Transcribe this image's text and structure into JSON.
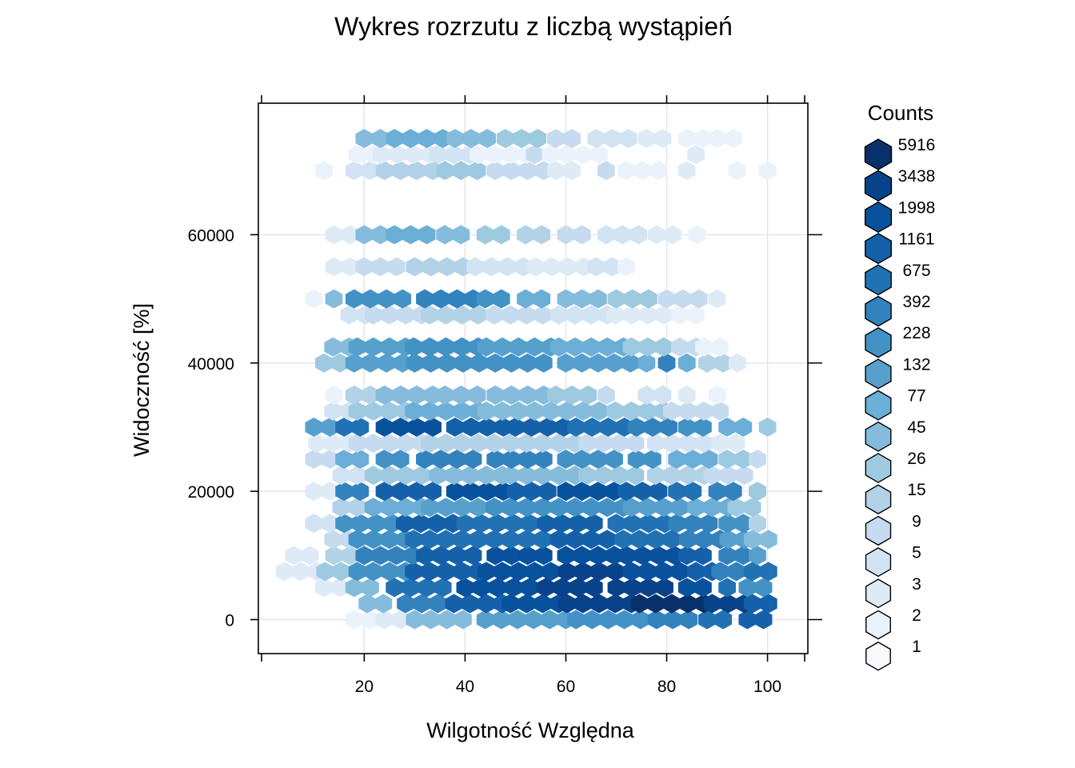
{
  "chart_data": {
    "type": "hexbin",
    "title": "Wykres rozrzutu z liczbą wystąpień",
    "xlabel": "Wilgotność Względna",
    "ylabel": "Widoczność [%]",
    "xlim": [
      -1,
      108
    ],
    "ylim": [
      -5300,
      80500
    ],
    "x_ticks": [
      20,
      40,
      60,
      80,
      100
    ],
    "y_ticks": [
      0,
      20000,
      40000,
      60000
    ],
    "x_tick_labels": [
      "20",
      "40",
      "60",
      "80",
      "100"
    ],
    "y_tick_labels": [
      "0",
      "20000",
      "40000",
      "60000"
    ],
    "grid": true,
    "legend": {
      "title": "Counts",
      "placement": "right",
      "levels": [
        "5916",
        "3438",
        "1998",
        "1161",
        "675",
        "392",
        "228",
        "132",
        "77",
        "45",
        "26",
        "15",
        "9",
        "5",
        "3",
        "2",
        "1"
      ]
    },
    "colors": [
      "#08306b",
      "#08428a",
      "#08519c",
      "#1561a9",
      "#2171b5",
      "#3282be",
      "#4292c6",
      "#57a0ce",
      "#6baed6",
      "#85bcdc",
      "#9ecae1",
      "#b2d2e8",
      "#c6dbef",
      "#d2e3f3",
      "#deebf7",
      "#eaf3fb",
      "#f7fbff"
    ],
    "row_spacing_y": 2500,
    "hex_width_x": 3.2,
    "bin_rows": [
      {
        "y": 0,
        "offset": 0,
        "segments": [
          [
            18,
            22,
            "2"
          ],
          [
            24,
            28,
            "3"
          ],
          [
            30,
            42,
            "45"
          ],
          [
            44,
            60,
            "132"
          ],
          [
            62,
            76,
            "228"
          ],
          [
            78,
            86,
            "392"
          ],
          [
            88,
            94,
            "675"
          ],
          [
            96,
            100,
            "1161"
          ]
        ]
      },
      {
        "y": 2500,
        "offset": 1,
        "segments": [
          [
            20.6,
            26.6,
            "45"
          ],
          [
            28.2,
            36.2,
            "392"
          ],
          [
            37.8,
            47.4,
            "1161"
          ],
          [
            49,
            58.6,
            "1998"
          ],
          [
            60.2,
            73,
            "3438"
          ],
          [
            74.6,
            87.4,
            "5916"
          ],
          [
            89,
            95.4,
            "3438"
          ],
          [
            97,
            100.2,
            "1161"
          ]
        ]
      },
      {
        "y": 5000,
        "offset": 0,
        "segments": [
          [
            12,
            16,
            "3"
          ],
          [
            18,
            24,
            "45"
          ],
          [
            26,
            38,
            "675"
          ],
          [
            40,
            54,
            "1998"
          ],
          [
            56,
            68,
            "3438"
          ],
          [
            70,
            82,
            "3438"
          ],
          [
            84,
            90,
            "1998"
          ],
          [
            92,
            94,
            "675"
          ],
          [
            96,
            100,
            "228"
          ]
        ]
      },
      {
        "y": 7500,
        "offset": 1,
        "segments": [
          [
            4.2,
            10.6,
            "3"
          ],
          [
            12.2,
            17,
            "26"
          ],
          [
            18.6,
            28.2,
            "228"
          ],
          [
            29.8,
            42.6,
            "1161"
          ],
          [
            44.2,
            58.6,
            "1998"
          ],
          [
            60.2,
            71.4,
            "3438"
          ],
          [
            73,
            84.2,
            "1998"
          ],
          [
            85.8,
            89,
            "1161"
          ],
          [
            90.6,
            95.4,
            "392"
          ],
          [
            97,
            100.2,
            "675"
          ]
        ]
      },
      {
        "y": 10000,
        "offset": 0,
        "segments": [
          [
            6,
            12,
            "3"
          ],
          [
            14,
            18,
            "15"
          ],
          [
            20,
            30,
            "392"
          ],
          [
            32,
            44,
            "1161"
          ],
          [
            46,
            58,
            "1998"
          ],
          [
            60,
            70,
            "1998"
          ],
          [
            72,
            82,
            "1998"
          ],
          [
            84,
            90,
            "1161"
          ],
          [
            92,
            96,
            "392"
          ],
          [
            98,
            100,
            "132"
          ]
        ]
      },
      {
        "y": 12500,
        "offset": 1,
        "segments": [
          [
            13.8,
            17,
            "9"
          ],
          [
            18.6,
            28.2,
            "228"
          ],
          [
            29.8,
            41,
            "675"
          ],
          [
            42.6,
            57,
            "675"
          ],
          [
            58.6,
            70,
            "1161"
          ],
          [
            71.4,
            82.6,
            "675"
          ],
          [
            84.2,
            90.6,
            "392"
          ],
          [
            92.2,
            95.4,
            "132"
          ],
          [
            97,
            100.2,
            "45"
          ]
        ]
      },
      {
        "y": 15000,
        "offset": 0,
        "segments": [
          [
            10,
            14,
            "5"
          ],
          [
            16,
            26,
            "228"
          ],
          [
            28,
            38,
            "1161"
          ],
          [
            40,
            54,
            "675"
          ],
          [
            56,
            68,
            "1161"
          ],
          [
            70,
            80,
            "675"
          ],
          [
            82,
            90,
            "392"
          ],
          [
            92,
            96,
            "228"
          ],
          [
            98,
            100,
            "15"
          ]
        ]
      },
      {
        "y": 17500,
        "offset": 1,
        "segments": [
          [
            15.4,
            20.2,
            "15"
          ],
          [
            21.8,
            31.4,
            "77"
          ],
          [
            33,
            44.2,
            "132"
          ],
          [
            45.8,
            57,
            "228"
          ],
          [
            58.6,
            71.4,
            "228"
          ],
          [
            73,
            84.2,
            "132"
          ],
          [
            85.8,
            92.2,
            "77"
          ],
          [
            93.8,
            97,
            "26"
          ]
        ]
      },
      {
        "y": 20000,
        "offset": 0,
        "segments": [
          [
            10,
            14,
            "3"
          ],
          [
            16,
            22,
            "392"
          ],
          [
            24,
            36,
            "1161"
          ],
          [
            38,
            48,
            "1998"
          ],
          [
            50,
            58,
            "1161"
          ],
          [
            60,
            70,
            "1998"
          ],
          [
            72,
            80,
            "1161"
          ],
          [
            82,
            88,
            "675"
          ],
          [
            90,
            96,
            "392"
          ],
          [
            98,
            100,
            "26"
          ]
        ]
      },
      {
        "y": 22500,
        "offset": 1,
        "segments": [
          [
            15.4,
            20.2,
            "5"
          ],
          [
            21.8,
            33,
            "26"
          ],
          [
            34.6,
            47.4,
            "45"
          ],
          [
            49,
            62.6,
            "45"
          ],
          [
            64.2,
            76.2,
            "26"
          ],
          [
            77.8,
            87.4,
            "15"
          ],
          [
            89,
            95.4,
            "9"
          ]
        ]
      },
      {
        "y": 25000,
        "offset": 0,
        "segments": [
          [
            10,
            14,
            "9"
          ],
          [
            16,
            22,
            "77"
          ],
          [
            24,
            30,
            "228"
          ],
          [
            32,
            44,
            "392"
          ],
          [
            46,
            58,
            "392"
          ],
          [
            60,
            72,
            "228"
          ],
          [
            74,
            80,
            "228"
          ],
          [
            82,
            90,
            "77"
          ],
          [
            92,
            96,
            "26"
          ],
          [
            98,
            100,
            "9"
          ]
        ]
      },
      {
        "y": 27500,
        "offset": 1,
        "segments": [
          [
            10.6,
            17,
            "3"
          ],
          [
            18.6,
            31.4,
            "9"
          ],
          [
            33,
            47.4,
            "15"
          ],
          [
            49,
            62.6,
            "15"
          ],
          [
            64.2,
            76.2,
            "9"
          ],
          [
            77.8,
            89,
            "5"
          ],
          [
            90.6,
            93.8,
            "3"
          ]
        ]
      },
      {
        "y": 30000,
        "offset": 0,
        "segments": [
          [
            10,
            14,
            "132"
          ],
          [
            16,
            22,
            "675"
          ],
          [
            24,
            36,
            "1998"
          ],
          [
            38,
            48,
            "1161"
          ],
          [
            50,
            60,
            "1161"
          ],
          [
            62,
            72,
            "675"
          ],
          [
            74,
            82,
            "392"
          ],
          [
            84,
            90,
            "228"
          ],
          [
            92,
            98,
            "77"
          ],
          [
            100,
            100,
            "26"
          ]
        ]
      },
      {
        "y": 32500,
        "offset": 1,
        "segments": [
          [
            13.8,
            17,
            "5"
          ],
          [
            18.6,
            28.2,
            "26"
          ],
          [
            29.8,
            42.6,
            "77"
          ],
          [
            44.2,
            55.4,
            "45"
          ],
          [
            57,
            68.2,
            "45"
          ],
          [
            69.8,
            79.4,
            "26"
          ],
          [
            81,
            90.6,
            "9"
          ]
        ]
      },
      {
        "y": 35000,
        "offset": 0,
        "segments": [
          [
            14,
            16,
            "2"
          ],
          [
            18,
            22,
            "15"
          ],
          [
            24,
            34,
            "45"
          ],
          [
            36,
            44,
            "45"
          ],
          [
            46,
            56,
            "45"
          ],
          [
            58,
            66,
            "26"
          ],
          [
            68,
            70,
            "9"
          ],
          [
            76,
            80,
            "5"
          ],
          [
            84,
            86,
            "3"
          ],
          [
            90,
            92,
            "2"
          ]
        ]
      },
      {
        "y": 40000,
        "offset": 0,
        "segments": [
          [
            12,
            16,
            "26"
          ],
          [
            18,
            28,
            "132"
          ],
          [
            30,
            44,
            "228"
          ],
          [
            46,
            58,
            "228"
          ],
          [
            60,
            74,
            "132"
          ],
          [
            76,
            78,
            "77"
          ],
          [
            80,
            82,
            "392"
          ],
          [
            84,
            86,
            "77"
          ],
          [
            88,
            92,
            "15"
          ],
          [
            94,
            96,
            "3"
          ]
        ]
      },
      {
        "y": 42500,
        "offset": 1,
        "segments": [
          [
            13.8,
            17,
            "45"
          ],
          [
            18.6,
            28.2,
            "132"
          ],
          [
            29.8,
            42.6,
            "228"
          ],
          [
            44.2,
            57,
            "132"
          ],
          [
            58.6,
            71.4,
            "77"
          ],
          [
            73,
            81,
            "26"
          ],
          [
            82.6,
            85.8,
            "9"
          ],
          [
            87.4,
            92.2,
            "2"
          ]
        ]
      },
      {
        "y": 47500,
        "offset": 1,
        "segments": [
          [
            17,
            20.2,
            "5"
          ],
          [
            21.8,
            31.4,
            "9"
          ],
          [
            33,
            44.2,
            "15"
          ],
          [
            45.8,
            57,
            "9"
          ],
          [
            58.6,
            68.2,
            "5"
          ],
          [
            69.8,
            81,
            "3"
          ],
          [
            82.6,
            85.8,
            "2"
          ]
        ]
      },
      {
        "y": 50000,
        "offset": 0,
        "segments": [
          [
            10,
            12,
            "2"
          ],
          [
            14,
            16,
            "45"
          ],
          [
            18,
            30,
            "228"
          ],
          [
            32,
            42,
            "392"
          ],
          [
            44,
            50,
            "228"
          ],
          [
            52,
            58,
            "77"
          ],
          [
            60,
            68,
            "45"
          ],
          [
            70,
            78,
            "26"
          ],
          [
            80,
            88,
            "9"
          ],
          [
            90,
            92,
            "3"
          ]
        ]
      },
      {
        "y": 55000,
        "offset": 0,
        "segments": [
          [
            14,
            18,
            "3"
          ],
          [
            20,
            28,
            "9"
          ],
          [
            30,
            40,
            "15"
          ],
          [
            42,
            52,
            "5"
          ],
          [
            54,
            64,
            "3"
          ],
          [
            66,
            70,
            "5"
          ],
          [
            72,
            74,
            "2"
          ]
        ]
      },
      {
        "y": 60000,
        "offset": 0,
        "segments": [
          [
            14,
            18,
            "3"
          ],
          [
            20,
            24,
            "45"
          ],
          [
            26,
            34,
            "77"
          ],
          [
            36,
            42,
            "45"
          ],
          [
            44,
            50,
            "26"
          ],
          [
            52,
            58,
            "15"
          ],
          [
            60,
            66,
            "9"
          ],
          [
            68,
            76,
            "5"
          ],
          [
            78,
            84,
            "3"
          ],
          [
            86,
            86,
            "2"
          ]
        ]
      },
      {
        "y": 70000,
        "offset": 0,
        "segments": [
          [
            12,
            12,
            "2"
          ],
          [
            18,
            22,
            "5"
          ],
          [
            24,
            34,
            "15"
          ],
          [
            36,
            44,
            "26"
          ],
          [
            46,
            56,
            "9"
          ],
          [
            58,
            64,
            "3"
          ],
          [
            68,
            68,
            "9"
          ],
          [
            72,
            80,
            "2"
          ],
          [
            84,
            84,
            "3"
          ],
          [
            94,
            94,
            "2"
          ],
          [
            100,
            100,
            "2"
          ]
        ]
      },
      {
        "y": 72500,
        "offset": 1,
        "segments": [
          [
            18.6,
            21.8,
            "2"
          ],
          [
            23.4,
            33,
            "3"
          ],
          [
            34.6,
            41,
            "5"
          ],
          [
            42.6,
            52.2,
            "2"
          ],
          [
            53.8,
            55.4,
            "9"
          ],
          [
            57,
            66.6,
            "2"
          ],
          [
            85.8,
            85.8,
            "3"
          ]
        ]
      },
      {
        "y": 75000,
        "offset": 0,
        "segments": [
          [
            20,
            24,
            "45"
          ],
          [
            26,
            36,
            "77"
          ],
          [
            38,
            46,
            "45"
          ],
          [
            48,
            56,
            "26"
          ],
          [
            58,
            64,
            "9"
          ],
          [
            66,
            74,
            "5"
          ],
          [
            76,
            82,
            "3"
          ],
          [
            84,
            88,
            "2"
          ],
          [
            90,
            94,
            "2"
          ]
        ]
      }
    ]
  }
}
